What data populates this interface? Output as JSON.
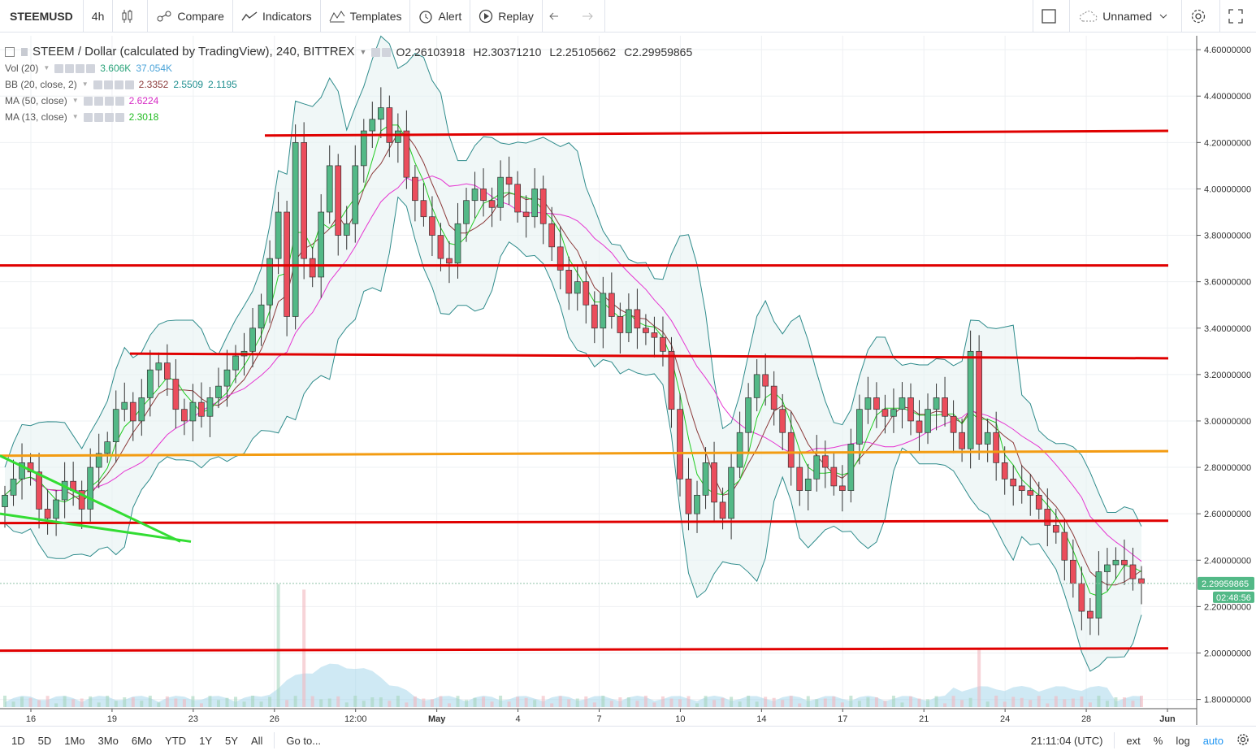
{
  "toolbar": {
    "symbol": "STEEMUSD",
    "interval": "4h",
    "compare": "Compare",
    "indicators": "Indicators",
    "templates": "Templates",
    "alert": "Alert",
    "replay": "Replay",
    "layout_name": "Unnamed"
  },
  "legend": {
    "title": "STEEM / Dollar (calculated by TradingView), 240, BITTREX",
    "open": "O2.26103918",
    "high": "H2.30371210",
    "low": "L2.25105662",
    "close": "C2.29959865",
    "vol_label": "Vol (20)",
    "vol_v1": "3.606K",
    "vol_v2": "37.054K",
    "bb_label": "BB (20, close, 2)",
    "bb_v1": "2.3352",
    "bb_v2": "2.5509",
    "bb_v3": "2.1195",
    "ma50_label": "MA (50, close)",
    "ma50_v": "2.6224",
    "ma13_label": "MA (13, close)",
    "ma13_v": "2.3018"
  },
  "price_axis": {
    "labels": [
      "4.60000000",
      "4.40000000",
      "4.20000000",
      "4.00000000",
      "3.80000000",
      "3.60000000",
      "3.40000000",
      "3.20000000",
      "3.00000000",
      "2.80000000",
      "2.60000000",
      "2.40000000",
      "2.20000000",
      "2.00000000",
      "1.80000000"
    ],
    "current_price": "2.29959865",
    "countdown": "02:48:56"
  },
  "time_axis": {
    "labels": [
      "16",
      "19",
      "23",
      "26",
      "12:00",
      "May",
      "4",
      "7",
      "10",
      "14",
      "17",
      "21",
      "24",
      "28",
      "Jun"
    ]
  },
  "bottom": {
    "ranges": [
      "1D",
      "5D",
      "1Mo",
      "3Mo",
      "6Mo",
      "YTD",
      "1Y",
      "5Y",
      "All"
    ],
    "goto": "Go to...",
    "clock": "21:11:04 (UTC)",
    "ext": "ext",
    "pct": "%",
    "log": "log",
    "auto": "auto"
  },
  "colors": {
    "up": "#53b987",
    "down": "#eb4d5c",
    "levels": "#e00000",
    "orange_level": "#f39c12",
    "trend": "#33dd33",
    "bb": "#2e8b8b",
    "ma50": "#e535d1",
    "ma13": "#22cc22",
    "volume_area": "#9fd3ea"
  },
  "chart_data": {
    "type": "candlestick",
    "y_range": [
      1.76,
      4.66
    ],
    "levels": [
      {
        "y_start": 4.23,
        "y_end": 4.25,
        "color": "red"
      },
      {
        "y_start": 3.67,
        "y_end": 3.67,
        "color": "red"
      },
      {
        "y_start": 3.29,
        "y_end": 3.27,
        "color": "red"
      },
      {
        "y_start": 2.85,
        "y_end": 2.87,
        "color": "orange"
      },
      {
        "y_start": 2.56,
        "y_end": 2.57,
        "color": "red"
      },
      {
        "y_start": 2.01,
        "y_end": 2.02,
        "color": "red"
      }
    ],
    "closes": [
      2.68,
      2.75,
      2.82,
      2.78,
      2.62,
      2.58,
      2.66,
      2.74,
      2.7,
      2.62,
      2.8,
      2.86,
      2.91,
      3.05,
      3.08,
      3.0,
      3.1,
      3.22,
      3.25,
      3.18,
      3.05,
      3.0,
      3.08,
      3.02,
      3.1,
      3.15,
      3.22,
      3.28,
      3.3,
      3.4,
      3.5,
      3.7,
      3.9,
      3.45,
      4.2,
      3.7,
      3.62,
      3.9,
      4.1,
      3.8,
      3.85,
      4.1,
      4.25,
      4.3,
      4.35,
      4.2,
      4.25,
      4.05,
      3.95,
      3.88,
      3.8,
      3.7,
      3.68,
      3.85,
      3.95,
      4.0,
      3.95,
      3.92,
      4.05,
      4.02,
      3.9,
      3.88,
      4.0,
      3.85,
      3.75,
      3.65,
      3.55,
      3.6,
      3.5,
      3.4,
      3.55,
      3.45,
      3.38,
      3.48,
      3.4,
      3.38,
      3.36,
      3.3,
      3.05,
      2.75,
      2.6,
      2.68,
      2.82,
      2.65,
      2.58,
      2.8,
      2.95,
      3.1,
      3.2,
      3.15,
      3.05,
      2.95,
      2.8,
      2.7,
      2.75,
      2.85,
      2.8,
      2.72,
      2.7,
      2.9,
      3.05,
      3.1,
      3.05,
      3.02,
      3.05,
      3.1,
      3.0,
      2.95,
      3.05,
      3.1,
      3.02,
      2.95,
      2.88,
      3.3,
      2.9,
      2.95,
      2.82,
      2.75,
      2.72,
      2.7,
      2.68,
      2.62,
      2.55,
      2.52,
      2.4,
      2.3,
      2.18,
      2.15,
      2.35,
      2.38,
      2.4,
      2.38,
      2.32,
      2.3
    ],
    "volume_peaks": [
      2.9,
      3.6
    ]
  }
}
